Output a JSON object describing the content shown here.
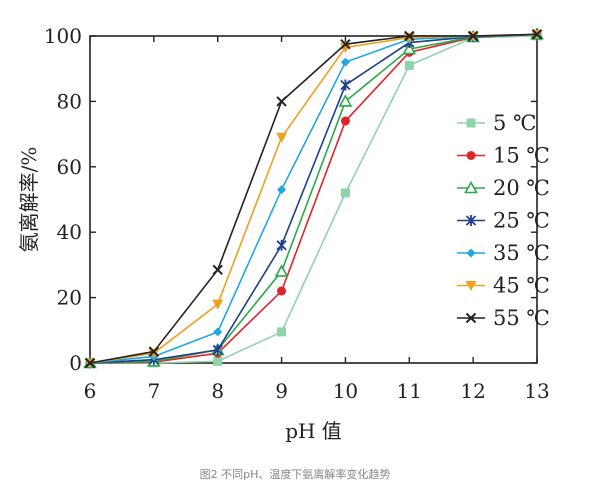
{
  "chart_data": {
    "type": "line",
    "title": "",
    "xlabel": "pH 值",
    "ylabel": "氨离解率/%",
    "x": [
      6,
      7,
      8,
      9,
      10,
      11,
      12,
      13
    ],
    "xlim": [
      6,
      13
    ],
    "ylim": [
      0,
      100
    ],
    "x_ticks": [
      "6",
      "7",
      "8",
      "9",
      "10",
      "11",
      "12",
      "13"
    ],
    "y_ticks": [
      "0",
      "20",
      "40",
      "60",
      "80",
      "100"
    ],
    "grid": false,
    "legend_position": "right",
    "series": [
      {
        "name": "5 ℃",
        "color": "#8fd4a8",
        "marker": "square",
        "values": [
          0,
          0,
          0.5,
          9.5,
          52,
          91,
          99.5,
          100
        ]
      },
      {
        "name": "15 ℃",
        "color": "#e0242b",
        "marker": "circle",
        "values": [
          0,
          0.3,
          3,
          22,
          74,
          95,
          99.6,
          100.5
        ]
      },
      {
        "name": "20 ℃",
        "color": "#2aa84a",
        "marker": "triangle",
        "values": [
          0,
          0.5,
          4,
          28,
          80,
          96,
          99.7,
          100.5
        ]
      },
      {
        "name": "25 ℃",
        "color": "#1f3f8c",
        "marker": "star",
        "values": [
          0,
          1,
          4,
          36,
          85,
          98,
          99.8,
          100.5
        ]
      },
      {
        "name": "35 ℃",
        "color": "#1fa8e6",
        "marker": "diamond",
        "values": [
          0,
          2,
          9.5,
          53,
          92,
          99,
          99.9,
          100.5
        ]
      },
      {
        "name": "45 ℃",
        "color": "#f0a020",
        "marker": "tri-down",
        "values": [
          0,
          3,
          18,
          69,
          96.5,
          99.5,
          100,
          100.5
        ]
      },
      {
        "name": "55 ℃",
        "color": "#222222",
        "marker": "x",
        "values": [
          0,
          3.5,
          28.5,
          80,
          97.5,
          100,
          100,
          100.5
        ]
      }
    ]
  },
  "caption": "图2 不同pH、温度下氨离解率变化趋势"
}
